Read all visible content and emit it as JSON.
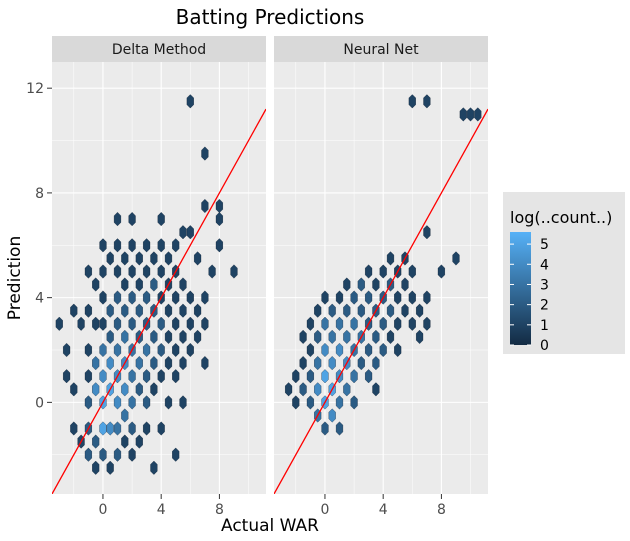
{
  "chart_data": {
    "type": "hexbin",
    "title": "Batting Predictions",
    "xlabel": "Actual WAR",
    "ylabel": "Prediction",
    "xlim": [
      -3.5,
      11.2
    ],
    "ylim": [
      -3.5,
      13
    ],
    "xticks": [
      0,
      4,
      8
    ],
    "yticks": [
      0,
      4,
      8,
      12
    ],
    "grid": true,
    "reference_line": {
      "color": "#ff0000",
      "slope": 1,
      "intercept": 0
    },
    "legend": {
      "title": "log(..count..)",
      "position": "right",
      "min": 0,
      "max": 5.6,
      "ticks": [
        0,
        1,
        2,
        3,
        4,
        5
      ],
      "low_color": "#132b43",
      "high_color": "#56b1f7"
    },
    "panels": [
      {
        "name": "Delta Method",
        "hex_centers": [
          [
            -3,
            3
          ],
          [
            -2.5,
            2
          ],
          [
            -2.5,
            1
          ],
          [
            -2,
            0.5
          ],
          [
            -2,
            -1
          ],
          [
            -1.5,
            -1.5
          ],
          [
            -2,
            3.5
          ],
          [
            -1.5,
            3
          ],
          [
            -1,
            -2
          ],
          [
            -1,
            -1
          ],
          [
            -1,
            0
          ],
          [
            -1,
            1
          ],
          [
            -1,
            2
          ],
          [
            -1,
            3.5
          ],
          [
            -1,
            5
          ],
          [
            -0.5,
            -2.5
          ],
          [
            -0.5,
            -1.5
          ],
          [
            -0.5,
            0.5
          ],
          [
            -0.5,
            1.5
          ],
          [
            -0.5,
            3
          ],
          [
            -0.5,
            4.5
          ],
          [
            0,
            -2
          ],
          [
            0,
            -1
          ],
          [
            0,
            0
          ],
          [
            0,
            1
          ],
          [
            0,
            2
          ],
          [
            0,
            3
          ],
          [
            0,
            4
          ],
          [
            0,
            5
          ],
          [
            0,
            6
          ],
          [
            0.5,
            -2.5
          ],
          [
            0.5,
            -1
          ],
          [
            0.5,
            0.5
          ],
          [
            0.5,
            1.5
          ],
          [
            0.5,
            2.5
          ],
          [
            0.5,
            3.5
          ],
          [
            0.5,
            5.5
          ],
          [
            1,
            -2
          ],
          [
            1,
            -1
          ],
          [
            1,
            0
          ],
          [
            1,
            1
          ],
          [
            1,
            2
          ],
          [
            1,
            3
          ],
          [
            1,
            4
          ],
          [
            1,
            5
          ],
          [
            1,
            6
          ],
          [
            1,
            7
          ],
          [
            1.5,
            -1.5
          ],
          [
            1.5,
            -0.5
          ],
          [
            1.5,
            0.5
          ],
          [
            1.5,
            1.5
          ],
          [
            1.5,
            2.5
          ],
          [
            1.5,
            3.5
          ],
          [
            1.5,
            4.5
          ],
          [
            1.5,
            5.5
          ],
          [
            2,
            -2
          ],
          [
            2,
            -1
          ],
          [
            2,
            0
          ],
          [
            2,
            1
          ],
          [
            2,
            2
          ],
          [
            2,
            3
          ],
          [
            2,
            4
          ],
          [
            2,
            5
          ],
          [
            2,
            6
          ],
          [
            2,
            7
          ],
          [
            2.5,
            -1.5
          ],
          [
            2.5,
            0.5
          ],
          [
            2.5,
            1.5
          ],
          [
            2.5,
            2.5
          ],
          [
            2.5,
            3.5
          ],
          [
            2.5,
            4.5
          ],
          [
            2.5,
            5.5
          ],
          [
            3,
            -1
          ],
          [
            3,
            0
          ],
          [
            3,
            1
          ],
          [
            3,
            2
          ],
          [
            3,
            3
          ],
          [
            3,
            4
          ],
          [
            3,
            5
          ],
          [
            3,
            6
          ],
          [
            3.5,
            -2.5
          ],
          [
            3.5,
            0.5
          ],
          [
            3.5,
            1.5
          ],
          [
            3.5,
            2.5
          ],
          [
            3.5,
            3.5
          ],
          [
            3.5,
            4.5
          ],
          [
            3.5,
            5.5
          ],
          [
            4,
            -1
          ],
          [
            4,
            1
          ],
          [
            4,
            2
          ],
          [
            4,
            3
          ],
          [
            4,
            4
          ],
          [
            4,
            5
          ],
          [
            4,
            6
          ],
          [
            4,
            7
          ],
          [
            4.5,
            0
          ],
          [
            4.5,
            1.5
          ],
          [
            4.5,
            2.5
          ],
          [
            4.5,
            3.5
          ],
          [
            4.5,
            4.5
          ],
          [
            4.5,
            5.5
          ],
          [
            5,
            -2
          ],
          [
            5,
            1
          ],
          [
            5,
            2
          ],
          [
            5,
            3
          ],
          [
            5,
            4
          ],
          [
            5,
            5
          ],
          [
            5,
            6
          ],
          [
            5.5,
            0
          ],
          [
            5.5,
            1.5
          ],
          [
            5.5,
            2.5
          ],
          [
            5.5,
            3.5
          ],
          [
            5.5,
            4.5
          ],
          [
            5.5,
            6.5
          ],
          [
            6,
            2
          ],
          [
            6,
            3
          ],
          [
            6,
            4
          ],
          [
            6,
            6.5
          ],
          [
            6,
            11.5
          ],
          [
            6.5,
            2.5
          ],
          [
            6.5,
            3.5
          ],
          [
            6.5,
            5.5
          ],
          [
            7,
            1.5
          ],
          [
            7,
            3
          ],
          [
            7,
            4
          ],
          [
            7,
            7.5
          ],
          [
            7,
            9.5
          ],
          [
            7.5,
            5
          ],
          [
            8,
            6
          ],
          [
            8,
            7
          ],
          [
            8,
            7.5
          ],
          [
            9,
            5
          ]
        ],
        "counts": [
          1,
          1,
          1,
          1,
          1,
          1,
          1,
          1,
          2,
          2,
          2,
          1,
          1,
          1,
          1,
          1,
          2,
          4,
          3,
          1,
          1,
          2,
          5,
          5,
          4,
          3,
          1,
          1,
          1,
          1,
          1,
          4,
          5,
          4,
          2,
          2,
          1,
          2,
          3,
          4,
          4,
          3,
          2,
          2,
          1,
          1,
          1,
          1,
          3,
          4,
          4,
          3,
          2,
          1,
          1,
          1,
          2,
          3,
          3,
          3,
          2,
          2,
          1,
          1,
          1,
          1,
          2,
          3,
          2,
          2,
          1,
          1,
          1,
          2,
          2,
          3,
          2,
          2,
          1,
          1,
          1,
          1,
          2,
          2,
          2,
          2,
          1,
          1,
          1,
          2,
          2,
          1,
          1,
          1,
          1,
          1,
          1,
          1,
          1,
          1,
          1,
          1,
          1,
          1,
          1,
          1,
          1,
          1,
          1,
          1,
          1,
          1,
          1,
          1,
          1,
          1,
          1,
          1,
          1,
          1,
          1,
          1,
          1,
          1,
          1,
          1,
          1,
          1,
          1,
          1,
          1,
          1
        ]
      },
      {
        "name": "Neural Net",
        "hex_centers": [
          [
            -2.5,
            0.5
          ],
          [
            -2,
            1
          ],
          [
            -2,
            0
          ],
          [
            -1.5,
            1.5
          ],
          [
            -1.5,
            0.5
          ],
          [
            -1.5,
            2.5
          ],
          [
            -1,
            0
          ],
          [
            -1,
            1
          ],
          [
            -1,
            2
          ],
          [
            -1,
            3
          ],
          [
            -0.5,
            -0.5
          ],
          [
            -0.5,
            0.5
          ],
          [
            -0.5,
            1.5
          ],
          [
            -0.5,
            2.5
          ],
          [
            -0.5,
            3.5
          ],
          [
            0,
            -1
          ],
          [
            0,
            0
          ],
          [
            0,
            1
          ],
          [
            0,
            2
          ],
          [
            0,
            3
          ],
          [
            0,
            4
          ],
          [
            0.5,
            -0.5
          ],
          [
            0.5,
            0.5
          ],
          [
            0.5,
            1.5
          ],
          [
            0.5,
            2.5
          ],
          [
            0.5,
            3.5
          ],
          [
            1,
            -1
          ],
          [
            1,
            0
          ],
          [
            1,
            1
          ],
          [
            1,
            2
          ],
          [
            1,
            3
          ],
          [
            1,
            4
          ],
          [
            1.5,
            0.5
          ],
          [
            1.5,
            1.5
          ],
          [
            1.5,
            2.5
          ],
          [
            1.5,
            3.5
          ],
          [
            1.5,
            4.5
          ],
          [
            2,
            0
          ],
          [
            2,
            1
          ],
          [
            2,
            2
          ],
          [
            2,
            3
          ],
          [
            2,
            4
          ],
          [
            2.5,
            1.5
          ],
          [
            2.5,
            2.5
          ],
          [
            2.5,
            3.5
          ],
          [
            2.5,
            4.5
          ],
          [
            3,
            1
          ],
          [
            3,
            2
          ],
          [
            3,
            3
          ],
          [
            3,
            4
          ],
          [
            3,
            5
          ],
          [
            3.5,
            0.5
          ],
          [
            3.5,
            1.5
          ],
          [
            3.5,
            2.5
          ],
          [
            3.5,
            3.5
          ],
          [
            3.5,
            4.5
          ],
          [
            4,
            2
          ],
          [
            4,
            3
          ],
          [
            4,
            4
          ],
          [
            4,
            5
          ],
          [
            4.5,
            2.5
          ],
          [
            4.5,
            3.5
          ],
          [
            4.5,
            4.5
          ],
          [
            4.5,
            5.5
          ],
          [
            5,
            2
          ],
          [
            5,
            3
          ],
          [
            5,
            4
          ],
          [
            5,
            5
          ],
          [
            5.5,
            3.5
          ],
          [
            5.5,
            4.5
          ],
          [
            5.5,
            5.5
          ],
          [
            6,
            3
          ],
          [
            6,
            4
          ],
          [
            6,
            5
          ],
          [
            6,
            11.5
          ],
          [
            6.5,
            2.5
          ],
          [
            6.5,
            3.5
          ],
          [
            7,
            3
          ],
          [
            7,
            4
          ],
          [
            7,
            6.5
          ],
          [
            7,
            11.5
          ],
          [
            8,
            5
          ],
          [
            9,
            5.5
          ],
          [
            9.5,
            11
          ],
          [
            10,
            11
          ],
          [
            10.5,
            11
          ]
        ],
        "counts": [
          1,
          1,
          1,
          1,
          2,
          1,
          2,
          2,
          1,
          1,
          3,
          4,
          3,
          2,
          1,
          2,
          5,
          5,
          4,
          3,
          1,
          4,
          5,
          4,
          3,
          2,
          2,
          3,
          4,
          4,
          3,
          1,
          3,
          4,
          3,
          2,
          1,
          2,
          3,
          3,
          3,
          2,
          2,
          3,
          2,
          2,
          2,
          2,
          2,
          2,
          1,
          1,
          2,
          2,
          2,
          1,
          2,
          2,
          2,
          1,
          1,
          2,
          2,
          1,
          1,
          1,
          1,
          1,
          1,
          1,
          1,
          1,
          1,
          1,
          1,
          1,
          1,
          1,
          1,
          1,
          1,
          1,
          1,
          1,
          1,
          1
        ]
      }
    ]
  }
}
